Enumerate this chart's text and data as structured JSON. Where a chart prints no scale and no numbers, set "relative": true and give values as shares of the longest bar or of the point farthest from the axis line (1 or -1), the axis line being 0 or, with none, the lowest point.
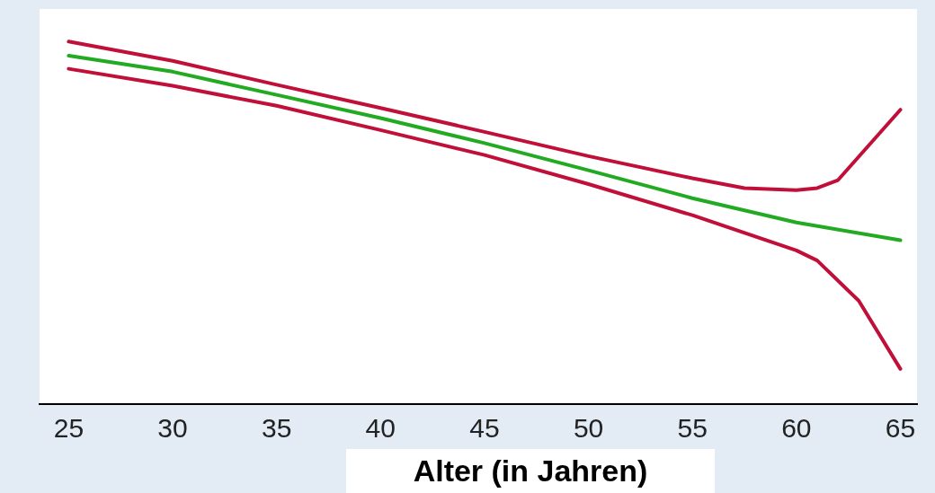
{
  "chart_data": {
    "type": "line",
    "xlabel": "Alter (in Jahren)",
    "relative": true,
    "xlim": [
      23.6,
      65.8
    ],
    "xticks": [
      25,
      30,
      35,
      40,
      45,
      50,
      55,
      60,
      65
    ],
    "grid": false,
    "legend": false,
    "marker": "none",
    "line_style": "solid",
    "series": [
      {
        "color": "#c0103a",
        "x": [
          25,
          30,
          35,
          40,
          45,
          50,
          55,
          57.5,
          60,
          61,
          62,
          65
        ],
        "values": [
          1.0,
          0.947,
          0.881,
          0.817,
          0.751,
          0.684,
          0.623,
          0.596,
          0.59,
          0.596,
          0.618,
          0.812
        ]
      },
      {
        "color": "#c0103a",
        "x": [
          25,
          30,
          35,
          40,
          45,
          50,
          55,
          60,
          61,
          63,
          65
        ],
        "values": [
          0.925,
          0.878,
          0.823,
          0.756,
          0.687,
          0.607,
          0.521,
          0.424,
          0.396,
          0.285,
          0.097
        ]
      },
      {
        "color": "#22aa22",
        "x": [
          25,
          30,
          35,
          40,
          45,
          50,
          55,
          60,
          65
        ],
        "values": [
          0.961,
          0.917,
          0.853,
          0.789,
          0.72,
          0.645,
          0.568,
          0.501,
          0.452
        ]
      }
    ]
  }
}
